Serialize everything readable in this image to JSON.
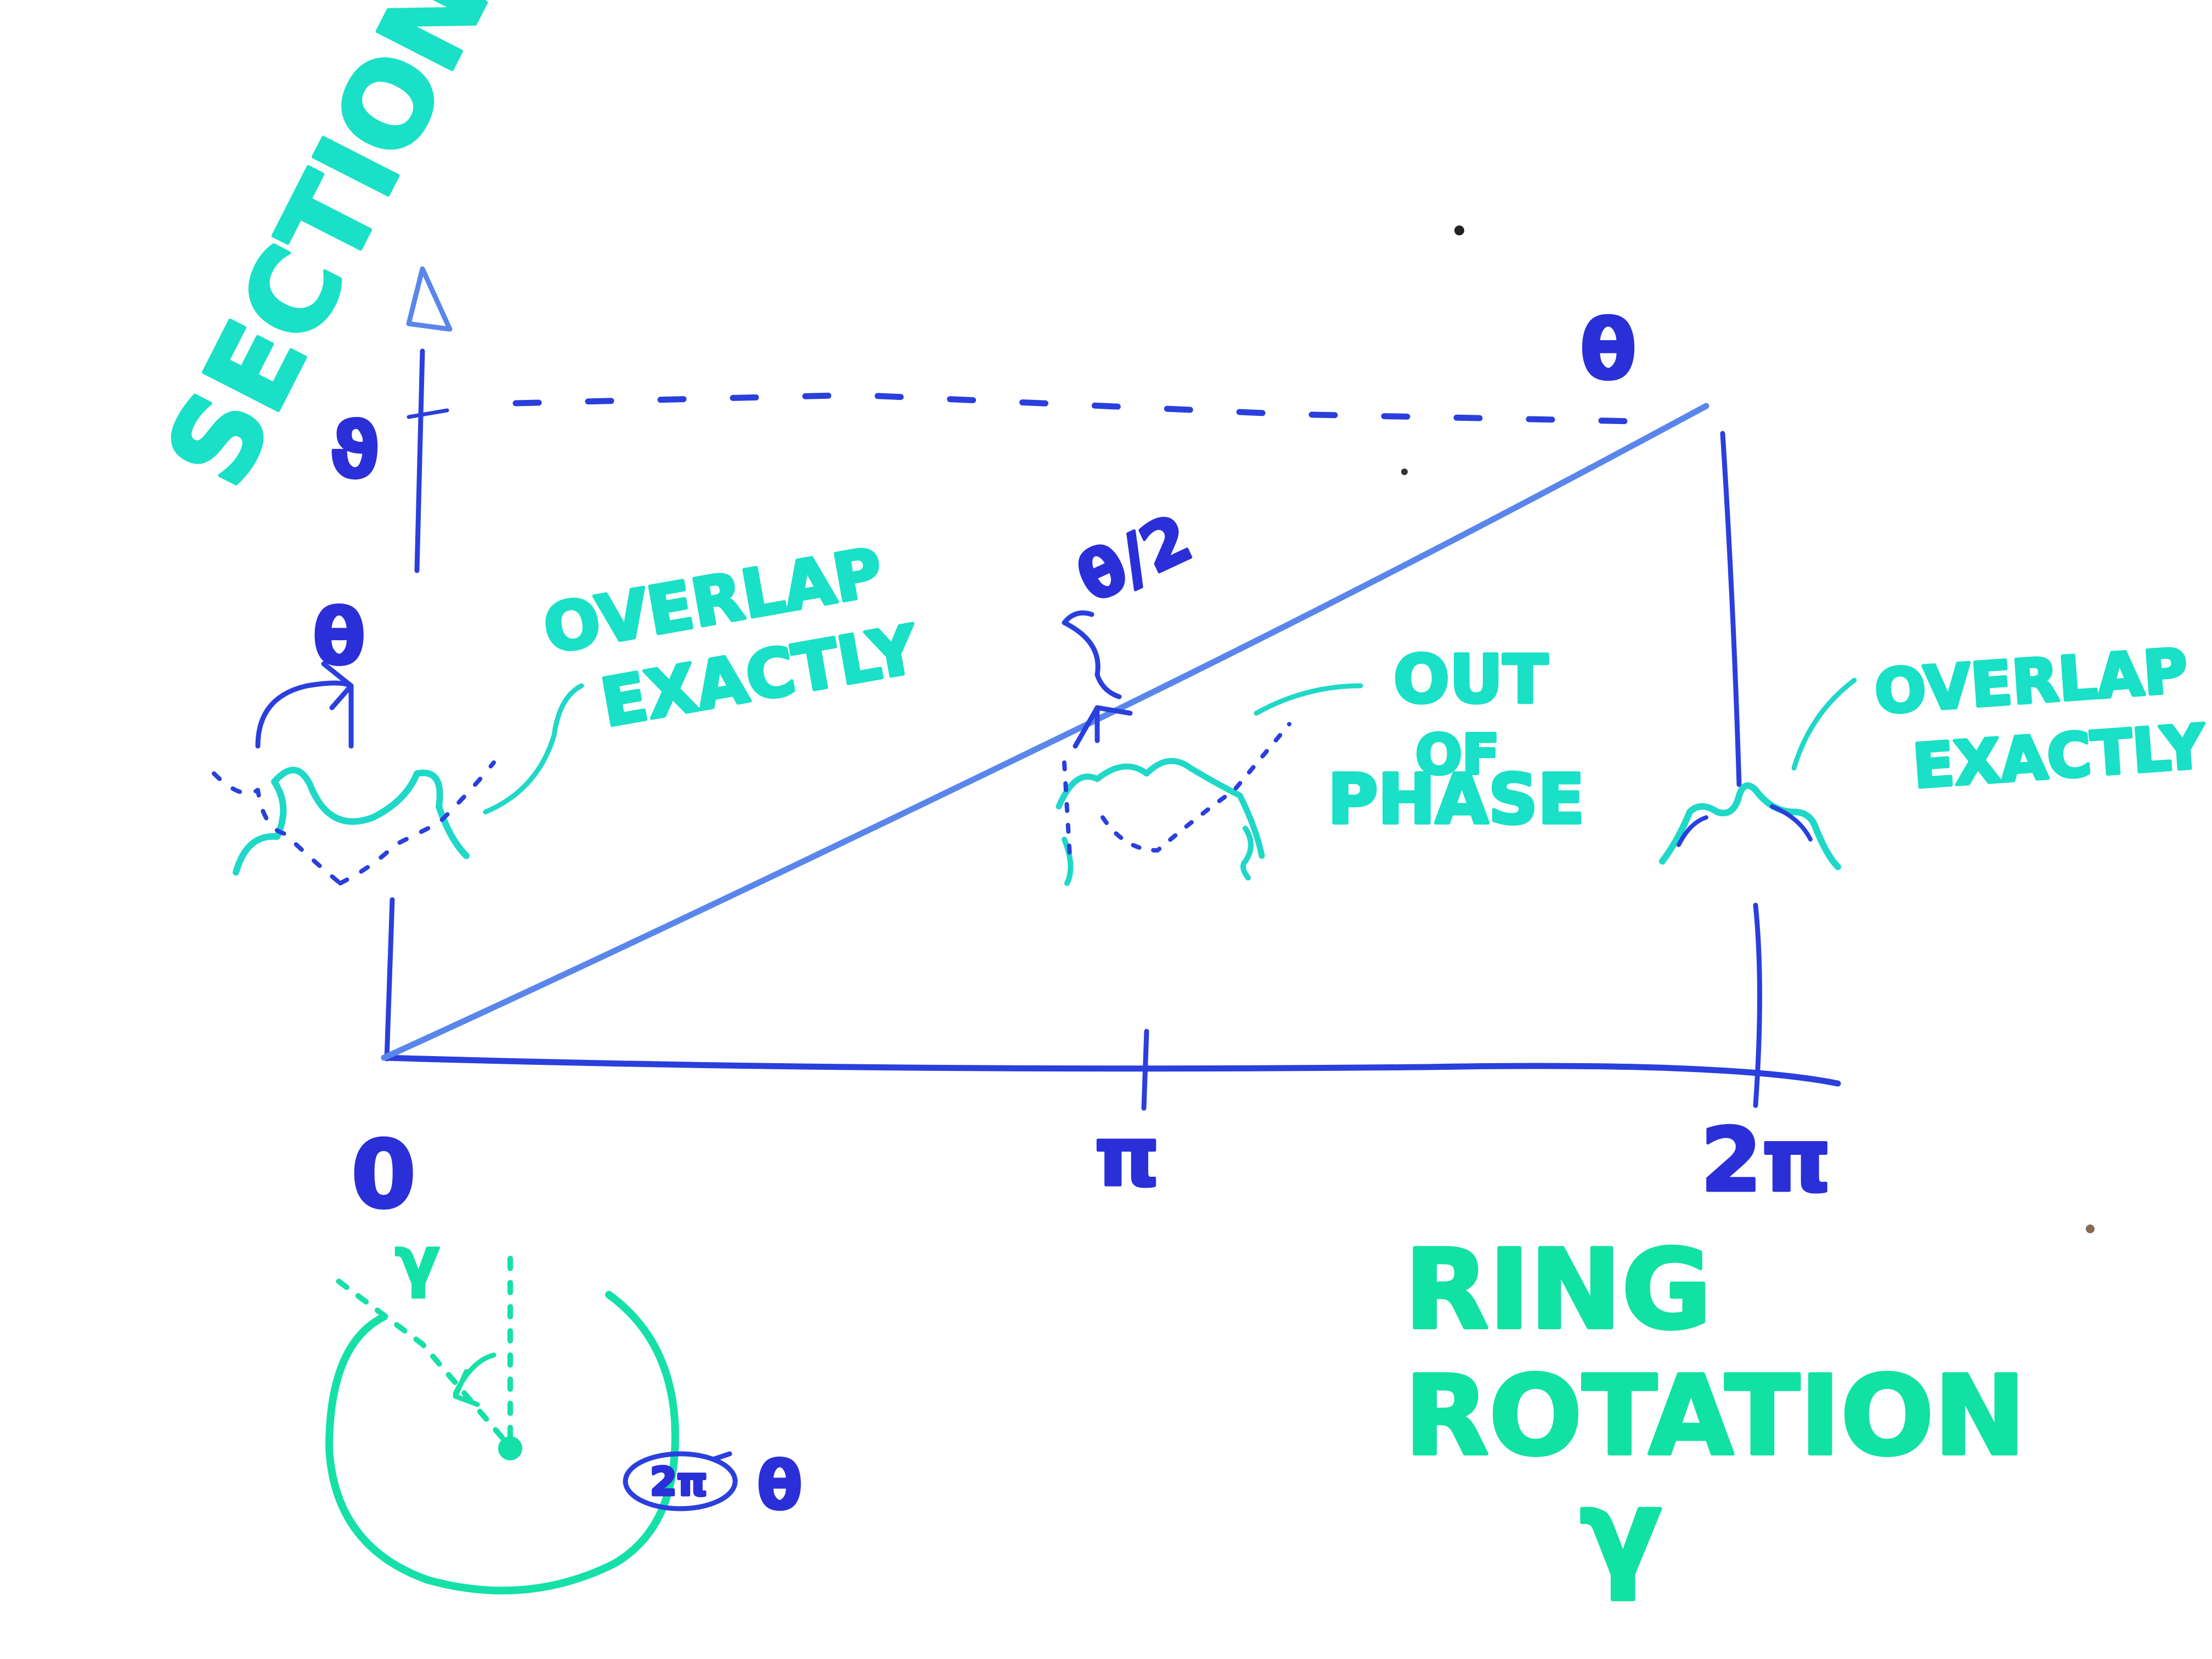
{
  "labels": {
    "y_axis_title": "SECTION ROT.",
    "y_axis_var": "ϑ",
    "top_right_theta": "θ",
    "left_theta": "θ",
    "mid_theta_half": "θ/2",
    "overlap_left": [
      "OVERLAP",
      "EXACTLY"
    ],
    "out_of_phase": [
      "OUT",
      "OF",
      "PHASE"
    ],
    "overlap_right": [
      "OVERLAP",
      "EXACTLY"
    ],
    "tick_zero": "0",
    "tick_pi": "π",
    "tick_two_pi": "2π",
    "x_axis_title": [
      "RING",
      "ROTATION",
      "γ"
    ],
    "ring_gamma": "γ",
    "ring_theta": "θ",
    "ring_two_pi": "2π"
  },
  "colors": {
    "blue": "#2a3fdc",
    "light_blue": "#5a86ec",
    "teal": "#1fd8c8",
    "green": "#15e0a8"
  }
}
